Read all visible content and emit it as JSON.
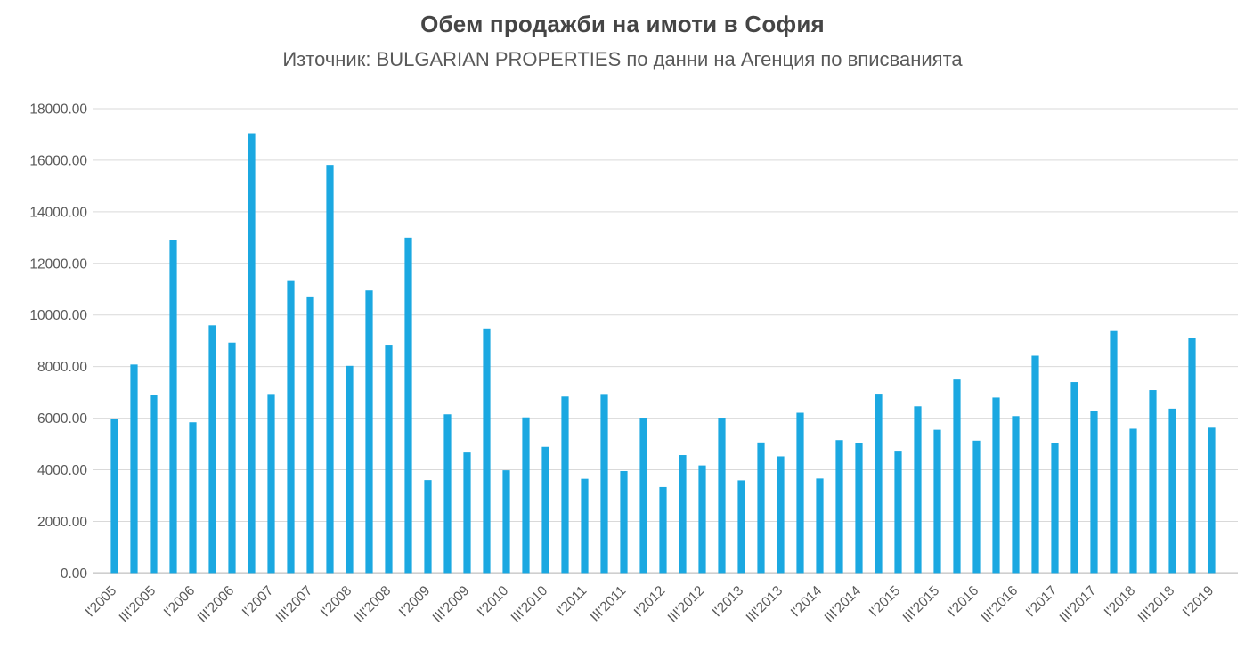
{
  "chart_data": {
    "type": "bar",
    "title": "Обем продажби на имоти в София",
    "subtitle": "Източник: BULGARIAN PROPERTIES по данни на Агенция по вписванията",
    "categories": [
      "I'2005",
      "II'2005",
      "III'2005",
      "IV'2005",
      "I'2006",
      "II'2006",
      "III'2006",
      "IV'2006",
      "I'2007",
      "II'2007",
      "III'2007",
      "IV'2007",
      "I'2008",
      "II'2008",
      "III'2008",
      "IV'2008",
      "I'2009",
      "II'2009",
      "III'2009",
      "IV'2009",
      "I'2010",
      "II'2010",
      "III'2010",
      "IV'2010",
      "I'2011",
      "II'2011",
      "III'2011",
      "IV'2011",
      "I'2012",
      "II'2012",
      "III'2012",
      "IV'2012",
      "I'2013",
      "II'2013",
      "III'2013",
      "IV'2013",
      "I'2014",
      "II'2014",
      "III'2014",
      "IV'2014",
      "I'2015",
      "II'2015",
      "III'2015",
      "IV'2015",
      "I'2016",
      "II'2016",
      "III'2016",
      "IV'2016",
      "I'2017",
      "II'2017",
      "III'2017",
      "IV'2017",
      "I'2018",
      "II'2018",
      "III'2018",
      "IV'2018",
      "I'2019"
    ],
    "values": [
      5980,
      8080,
      6900,
      12900,
      5840,
      9600,
      8930,
      17050,
      6940,
      11350,
      10720,
      15820,
      8030,
      10950,
      8850,
      13000,
      3600,
      6150,
      4670,
      9480,
      3980,
      6030,
      4890,
      6840,
      3650,
      6940,
      3950,
      6020,
      3330,
      4570,
      4170,
      6020,
      3590,
      5060,
      4520,
      6210,
      3660,
      5150,
      5050,
      6950,
      4740,
      6460,
      5550,
      7500,
      5130,
      6800,
      6080,
      8420,
      5020,
      7400,
      6290,
      9380,
      5590,
      7090,
      6370,
      9110,
      5630
    ],
    "x_tick_labels": [
      "I'2005",
      "III'2005",
      "I'2006",
      "III'2006",
      "I'2007",
      "III'2007",
      "I'2008",
      "III'2008",
      "I'2009",
      "III'2009",
      "I'2010",
      "III'2010",
      "I'2011",
      "III'2011",
      "I'2012",
      "III'2012",
      "I'2013",
      "III'2013",
      "I'2014",
      "III'2014",
      "I'2015",
      "III'2015",
      "I'2016",
      "III'2016",
      "I'2017",
      "III'2017",
      "I'2018",
      "III'2018",
      "I'2019"
    ],
    "x_label_every": 2,
    "y_tick_labels": [
      "0.00",
      "2000.00",
      "4000.00",
      "6000.00",
      "8000.00",
      "10000.00",
      "12000.00",
      "14000.00",
      "16000.00",
      "18000.00"
    ],
    "ylim": [
      0,
      18000
    ],
    "y_tick_step": 2000,
    "xlabel": "",
    "ylabel": "",
    "grid": "horizontal",
    "legend": "none",
    "colors": {
      "bar": "#1BA8E1",
      "gridline": "#D9D9D9",
      "axis_line": "#CFCFCF",
      "title_text": "#454545",
      "label_text": "#595959"
    }
  }
}
